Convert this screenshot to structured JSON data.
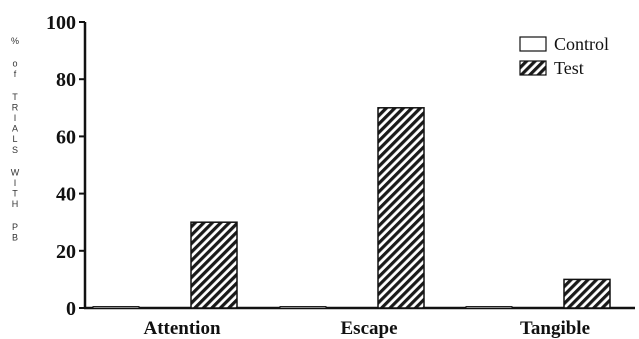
{
  "chart_data": {
    "type": "bar",
    "title": "",
    "xlabel": "",
    "ylabel": "% of TRIALS WITH PB",
    "ylim": [
      0,
      100
    ],
    "yticks": [
      0,
      20,
      40,
      60,
      80,
      100
    ],
    "categories": [
      "Attention",
      "Escape",
      "Tangible"
    ],
    "series": [
      {
        "name": "Control",
        "values": [
          0.5,
          0.5,
          0.5
        ],
        "fill": "#ffffff"
      },
      {
        "name": "Test",
        "values": [
          30,
          70,
          10
        ],
        "fill": "hatched"
      }
    ],
    "legend": {
      "position": "top-right",
      "entries": [
        "Control",
        "Test"
      ]
    },
    "grid": false
  }
}
